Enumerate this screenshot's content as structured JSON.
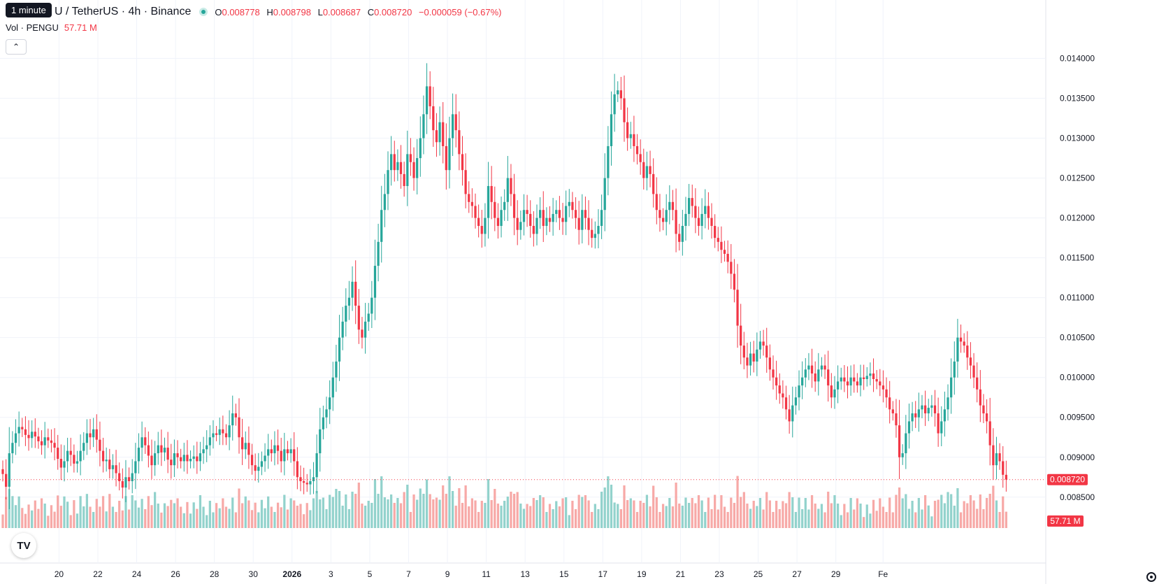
{
  "tooltip": "1 minute",
  "header": {
    "title": "PENGU / TetherUS · 4h · Binance",
    "title_visible": "U / TetherUS · 4h · Binance",
    "o_label": "O",
    "o_value": "0.008778",
    "h_label": "H",
    "h_value": "0.008798",
    "l_label": "L",
    "l_value": "0.008687",
    "c_label": "C",
    "c_value": "0.008720",
    "change": "−0.000059 (−0.67%)"
  },
  "volume_legend": {
    "label": "Vol · PENGU",
    "value": "57.71 M"
  },
  "collapse_icon": "chevron-up-icon",
  "colors": {
    "up": "#26a69a",
    "down": "#f23645",
    "up_vol": "#92d2cc",
    "down_vol": "#f7a9a7",
    "last_price": "#f23645"
  },
  "chart_data": {
    "type": "candlestick",
    "price_axis": {
      "ticks": [
        "0.014000",
        "0.013500",
        "0.013000",
        "0.012500",
        "0.012000",
        "0.011500",
        "0.011000",
        "0.010500",
        "0.010000",
        "0.009500",
        "0.009000",
        "0.008500"
      ],
      "range": [
        0.0082,
        0.01425
      ]
    },
    "time_axis": {
      "ticks": [
        "20",
        "22",
        "24",
        "26",
        "28",
        "30",
        "2026",
        "3",
        "5",
        "7",
        "9",
        "11",
        "13",
        "15",
        "17",
        "19",
        "21",
        "23",
        "25",
        "27",
        "29",
        "Fe"
      ]
    },
    "last_price": {
      "value": 0.00872,
      "label": "0.008720"
    },
    "last_volume_label": "57.71 M",
    "closes": [
      0.00879,
      0.00863,
      0.00905,
      0.00918,
      0.0093,
      0.00938,
      0.00935,
      0.00928,
      0.00924,
      0.00932,
      0.00926,
      0.0092,
      0.00915,
      0.00925,
      0.00921,
      0.00918,
      0.00912,
      0.00898,
      0.00887,
      0.00895,
      0.00908,
      0.00903,
      0.00892,
      0.00895,
      0.00908,
      0.00918,
      0.0093,
      0.00925,
      0.00935,
      0.00922,
      0.00908,
      0.00895,
      0.00897,
      0.00885,
      0.0089,
      0.0088,
      0.0087,
      0.00862,
      0.00875,
      0.0087,
      0.0088,
      0.00895,
      0.00912,
      0.00925,
      0.00915,
      0.00902,
      0.0089,
      0.00905,
      0.00915,
      0.00906,
      0.00912,
      0.00897,
      0.0089,
      0.00905,
      0.009,
      0.00895,
      0.00903,
      0.00895,
      0.00898,
      0.00901,
      0.00895,
      0.00905,
      0.0091,
      0.00915,
      0.00925,
      0.0093,
      0.00928,
      0.00935,
      0.0093,
      0.00925,
      0.0094,
      0.00955,
      0.0095,
      0.00925,
      0.0091,
      0.00918,
      0.00903,
      0.0089,
      0.00883,
      0.00888,
      0.00895,
      0.00902,
      0.0091,
      0.00905,
      0.00915,
      0.00908,
      0.00895,
      0.0091,
      0.00905,
      0.0091,
      0.00895,
      0.00875,
      0.0087,
      0.00868,
      0.00866,
      0.0087,
      0.00875,
      0.00905,
      0.00935,
      0.0095,
      0.0096,
      0.00975,
      0.01,
      0.0102,
      0.0105,
      0.0107,
      0.0109,
      0.011,
      0.0112,
      0.0109,
      0.0106,
      0.0105,
      0.0107,
      0.0108,
      0.011,
      0.0114,
      0.0117,
      0.0121,
      0.0123,
      0.0126,
      0.0128,
      0.0126,
      0.0127,
      0.01255,
      0.0124,
      0.0128,
      0.0127,
      0.0125,
      0.01275,
      0.013,
      0.0133,
      0.01365,
      0.0134,
      0.0131,
      0.01295,
      0.0132,
      0.0129,
      0.0126,
      0.013,
      0.0133,
      0.0131,
      0.0128,
      0.0126,
      0.0123,
      0.0122,
      0.01215,
      0.012,
      0.0119,
      0.0118,
      0.012,
      0.0124,
      0.0122,
      0.012,
      0.0119,
      0.0121,
      0.0122,
      0.0125,
      0.0123,
      0.012,
      0.01185,
      0.01195,
      0.0121,
      0.01205,
      0.0119,
      0.0118,
      0.012,
      0.0121,
      0.0119,
      0.012,
      0.01195,
      0.01205,
      0.0121,
      0.012,
      0.01195,
      0.01215,
      0.0122,
      0.0121,
      0.012,
      0.01185,
      0.0121,
      0.012,
      0.01185,
      0.01175,
      0.0118,
      0.0119,
      0.0121,
      0.0125,
      0.0129,
      0.0133,
      0.01355,
      0.0136,
      0.0135,
      0.0132,
      0.013,
      0.01305,
      0.0129,
      0.0128,
      0.0127,
      0.0125,
      0.01265,
      0.01255,
      0.0123,
      0.0121,
      0.012,
      0.01195,
      0.0121,
      0.0122,
      0.0121,
      0.0118,
      0.0117,
      0.0119,
      0.01205,
      0.01225,
      0.01215,
      0.012,
      0.0119,
      0.01205,
      0.01215,
      0.012,
      0.0119,
      0.01175,
      0.0117,
      0.0116,
      0.01155,
      0.01145,
      0.0113,
      0.0111,
      0.01065,
      0.0104,
      0.01025,
      0.01015,
      0.0103,
      0.0102,
      0.01035,
      0.01045,
      0.0104,
      0.01025,
      0.0101,
      0.01,
      0.0099,
      0.0098,
      0.00975,
      0.0096,
      0.00945,
      0.00965,
      0.00975,
      0.0099,
      0.01,
      0.0101,
      0.01015,
      0.01005,
      0.00995,
      0.0101,
      0.01015,
      0.0101,
      0.0099,
      0.00975,
      0.00985,
      0.00995,
      0.01,
      0.00995,
      0.0099,
      0.01,
      0.00995,
      0.0099,
      0.01,
      0.00998,
      0.01002,
      0.01005,
      0.00998,
      0.00995,
      0.0099,
      0.00985,
      0.00975,
      0.0096,
      0.00955,
      0.0094,
      0.009,
      0.00905,
      0.0093,
      0.00945,
      0.00955,
      0.0095,
      0.0096,
      0.00965,
      0.00955,
      0.00962,
      0.00965,
      0.00955,
      0.0093,
      0.00945,
      0.0096,
      0.00975,
      0.01,
      0.0102,
      0.0105,
      0.01045,
      0.0104,
      0.01025,
      0.01015,
      0.01,
      0.00985,
      0.00965,
      0.00955,
      0.00945,
      0.00915,
      0.0089,
      0.00905,
      0.00895,
      0.00878,
      0.00872
    ],
    "x_label_index": {
      "20": 7,
      "22": 19,
      "24": 31,
      "26": 43,
      "28": 55,
      "30": 67,
      "2026": 79,
      "3": 91,
      "5": 103,
      "7": 115,
      "9": 127,
      "11": 139,
      "13": 151,
      "15": 163,
      "17": 175,
      "19": 187,
      "21": 199,
      "23": 211,
      "25": 223,
      "27": 235,
      "29": 247,
      "Fe": 259
    }
  }
}
